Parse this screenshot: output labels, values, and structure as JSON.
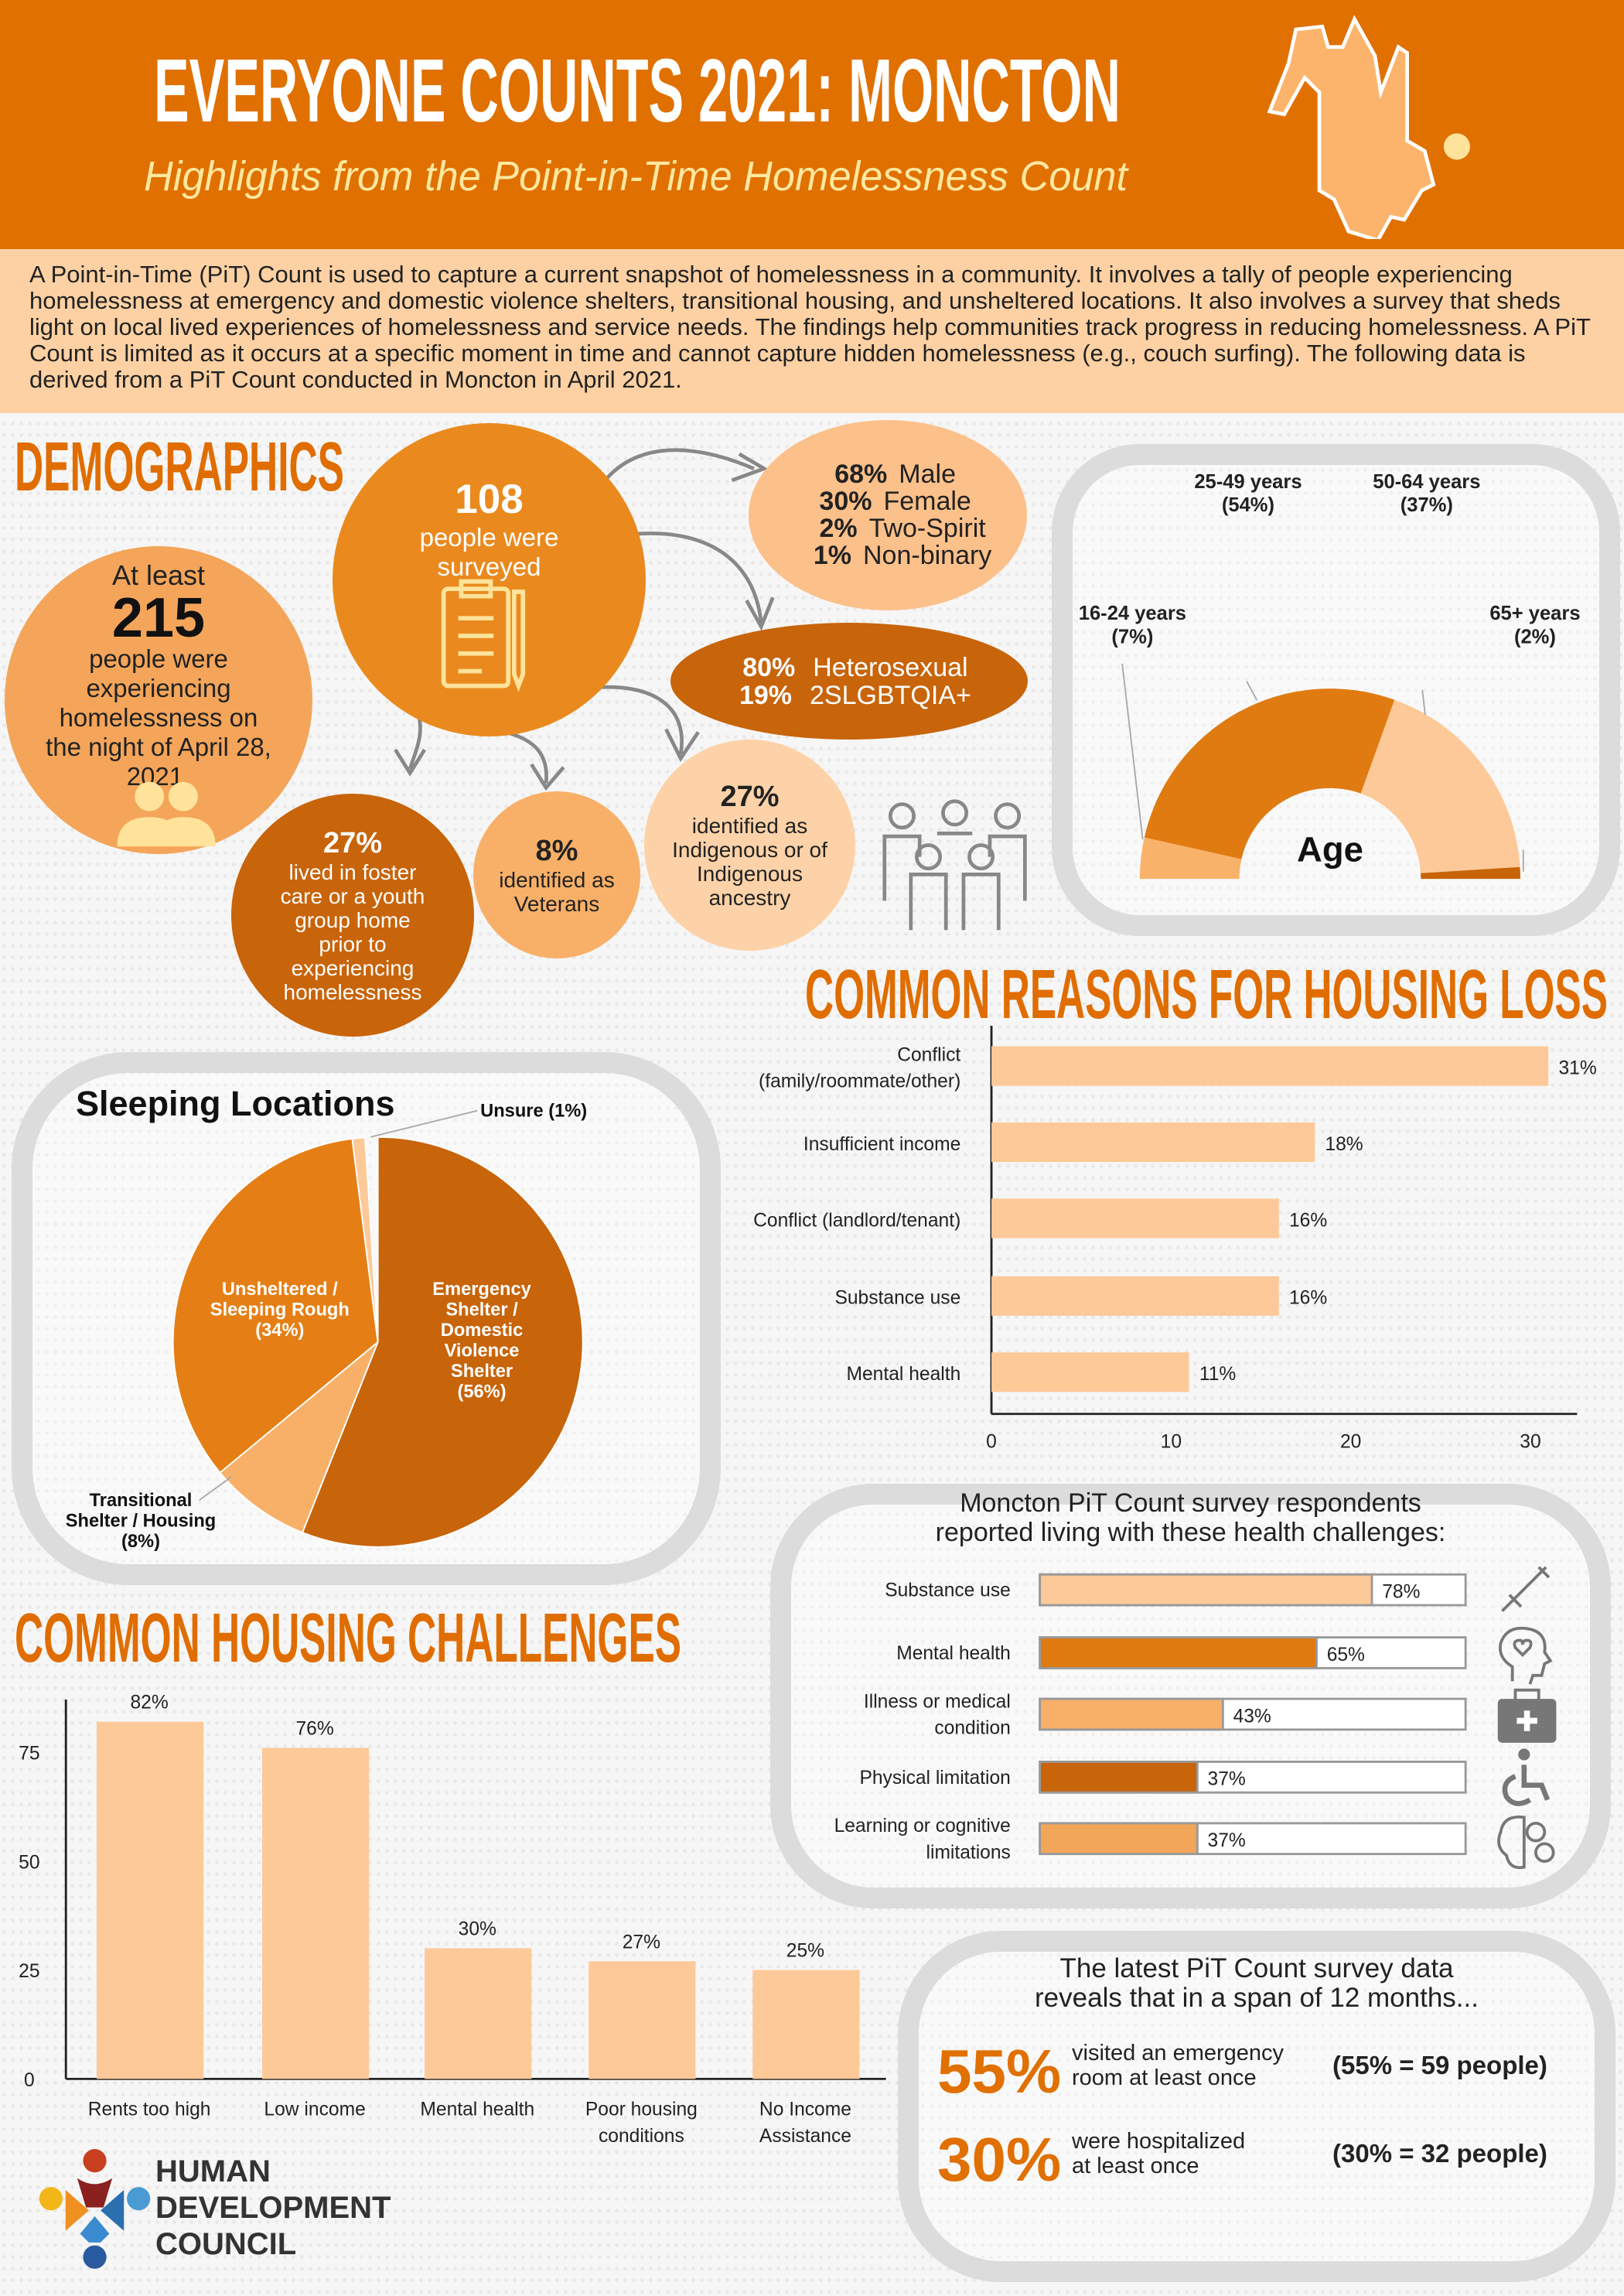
{
  "header": {
    "title": "EVERYONE COUNTS 2021: MONCTON",
    "subtitle": "Highlights from the Point-in-Time Homelessness Count"
  },
  "intro": "A Point-in-Time (PiT) Count is used to capture a current snapshot of homelessness in a community. It involves a tally of people experiencing homelessness at emergency and domestic violence shelters, transitional housing, and unsheltered locations. It also involves a survey that sheds light on local lived experiences of homelessness and service needs. The findings help communities track progress in reducing homelessness. A PiT Count is limited as it occurs at a specific moment in time and cannot capture hidden homelessness (e.g., couch surfing). The following data is derived from a PiT Count conducted in Moncton in April 2021.",
  "colors": {
    "header": "#e07000",
    "peach": "#fdd1a3",
    "accent": "#e06d00",
    "dark": "#c8640a",
    "light": "#fdc998",
    "mid": "#f8b068"
  },
  "demographics": {
    "heading": "DEMOGRAPHICS",
    "total": {
      "pre": "At least",
      "value": "215",
      "post": "people were experiencing homelessness on the night of April 28, 2021."
    },
    "surveyed": {
      "value": "108",
      "label": "people were surveyed"
    },
    "gender": [
      {
        "pct": "68%",
        "label": "Male"
      },
      {
        "pct": "30%",
        "label": "Female"
      },
      {
        "pct": "2%",
        "label": "Two-Spirit"
      },
      {
        "pct": "1%",
        "label": "Non-binary"
      }
    ],
    "orientation": [
      {
        "pct": "80%",
        "label": "Heterosexual"
      },
      {
        "pct": "19%",
        "label": "2SLGBTQIA+"
      }
    ],
    "foster": {
      "pct": "27%",
      "label": "lived in foster care or a youth group home prior to experiencing homelessness"
    },
    "veterans": {
      "pct": "8%",
      "label": "identified as Veterans"
    },
    "indigenous": {
      "pct": "27%",
      "label": "identified as Indigenous or of Indigenous ancestry"
    }
  },
  "reasons_heading": "COMMON REASONS FOR HOUSING LOSS",
  "challenges_heading": "COMMON HOUSING CHALLENGES",
  "logo": {
    "line1": "HUMAN",
    "line2": "DEVELOPMENT",
    "line3": "COUNCIL"
  },
  "health": {
    "title1": "Moncton PiT Count survey respondents",
    "title2": "reported living with these health challenges:"
  },
  "months": {
    "title1": "The latest PiT Count survey data",
    "title2": "reveals that in a span of 12 months...",
    "items": [
      {
        "pct": "55%",
        "text1": "visited an emergency",
        "text2": "room at least once",
        "note": "(55% = 59 people)"
      },
      {
        "pct": "30%",
        "text1": "were hospitalized",
        "text2": "at least once",
        "note": "(30% = 32 people)"
      }
    ]
  },
  "chart_data": [
    {
      "id": "age",
      "type": "pie",
      "title": "Age",
      "labels": [
        "16-24 years",
        "25-49 years",
        "50-64 years",
        "65+ years"
      ],
      "data_labels": [
        "(7%)",
        "(54%)",
        "(37%)",
        "(2%)"
      ],
      "values": [
        7,
        54,
        37,
        2
      ],
      "colors": [
        "#f9b26a",
        "#e07b12",
        "#fdc998",
        "#c86408"
      ]
    },
    {
      "id": "sleeping",
      "type": "pie",
      "title": "Sleeping Locations",
      "labels": [
        "Emergency Shelter / Domestic Violence Shelter",
        "Transitional Shelter / Housing",
        "Unsheltered / Sleeping Rough",
        "Unsure"
      ],
      "data_labels": [
        "(56%)",
        "(8%)",
        "(34%)",
        "(1%)"
      ],
      "values": [
        56,
        8,
        34,
        1
      ],
      "colors": [
        "#c8640a",
        "#f8b068",
        "#e57f15",
        "#fdc998"
      ]
    },
    {
      "id": "reasons",
      "type": "bar",
      "orientation": "horizontal",
      "categories": [
        "Conflict (family/roommate/other)",
        "Insufficient income",
        "Conflict (landlord/tenant)",
        "Substance use",
        "Mental health"
      ],
      "values": [
        31,
        18,
        16,
        16,
        11
      ],
      "data_labels": [
        "31%",
        "18%",
        "16%",
        "16%",
        "11%"
      ],
      "xlim": [
        0,
        32
      ],
      "ticks": [
        "0",
        "10",
        "20",
        "30"
      ],
      "color": "#fdc998"
    },
    {
      "id": "challenges",
      "type": "bar",
      "categories": [
        "Rents too high",
        "Low income",
        "Mental health",
        "Poor housing conditions",
        "No Income Assistance"
      ],
      "values": [
        82,
        76,
        30,
        27,
        25
      ],
      "data_labels": [
        "82%",
        "76%",
        "30%",
        "27%",
        "25%"
      ],
      "ylim": [
        0,
        88
      ],
      "ticks": [
        "0",
        "25",
        "50",
        "75"
      ],
      "color": "#fdc998"
    },
    {
      "id": "health",
      "type": "bar",
      "orientation": "horizontal",
      "categories": [
        "Substance use",
        "Mental health",
        "Illness or medical condition",
        "Physical limitation",
        "Learning or cognitive limitations"
      ],
      "values": [
        78,
        65,
        43,
        37,
        37
      ],
      "data_labels": [
        "78%",
        "65%",
        "43%",
        "37%",
        "37%"
      ],
      "xlim": [
        0,
        100
      ],
      "colors": [
        "#fdc998",
        "#e07b12",
        "#f8b068",
        "#c8640a",
        "#f2a65a"
      ],
      "icons": [
        "syringe-icon",
        "mental-health-head-icon",
        "medical-kit-icon",
        "wheelchair-icon",
        "brain-gears-icon"
      ]
    }
  ]
}
